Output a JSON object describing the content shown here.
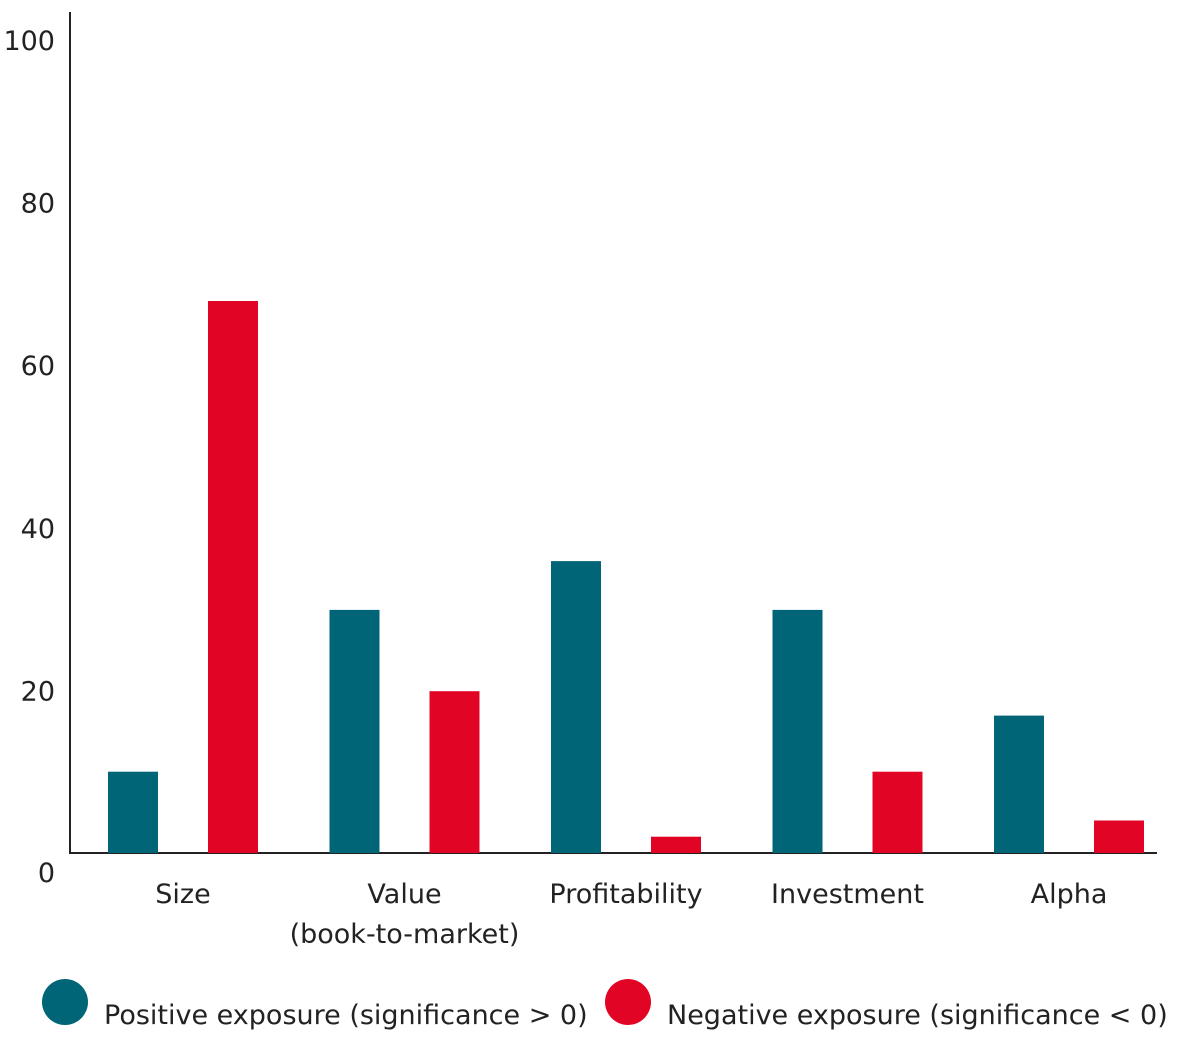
{
  "chart_data": {
    "type": "bar",
    "categories": [
      [
        "Size"
      ],
      [
        "Value",
        "(book-to-market)"
      ],
      [
        "Profitability"
      ],
      [
        "Investment"
      ],
      [
        "Alpha"
      ]
    ],
    "series": [
      {
        "name": "Positive exposure (significance > 0)",
        "color": "#006577",
        "values": [
          10,
          29.9,
          35.9,
          29.9,
          16.9
        ]
      },
      {
        "name": "Negative exposure (significance < 0)",
        "color": "#e20425",
        "values": [
          67.9,
          19.9,
          2,
          10,
          4
        ]
      }
    ],
    "ylim": [
      0,
      100
    ],
    "yticks": [
      "0",
      "20",
      "40",
      "60",
      "80",
      "100"
    ],
    "ytick_values": [
      0,
      20,
      40,
      60,
      80,
      100
    ],
    "title": "",
    "xlabel": "",
    "ylabel": "",
    "grid": false,
    "legend_position": "bottom"
  }
}
